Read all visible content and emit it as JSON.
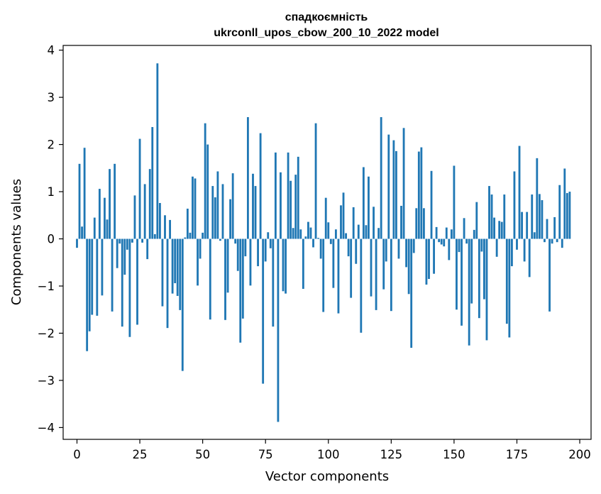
{
  "chart_data": {
    "type": "bar",
    "title_line1": "спадкоємність",
    "title_line2": "ukrconll_upos_cbow_200_10_2022 model",
    "xlabel": "Vector components",
    "ylabel": "Components values",
    "xlim": [
      -5.5,
      204.5
    ],
    "ylim": [
      -4.25,
      4.1
    ],
    "xticks": [
      0,
      25,
      50,
      75,
      100,
      125,
      150,
      175,
      200
    ],
    "yticks": [
      -4,
      -3,
      -2,
      -1,
      0,
      1,
      2,
      3,
      4
    ],
    "bar_color": "#1f77b4",
    "values": [
      -0.19,
      1.59,
      0.26,
      1.93,
      -2.38,
      -1.96,
      -1.61,
      0.45,
      -1.63,
      1.06,
      -1.2,
      0.87,
      0.41,
      1.48,
      -1.54,
      1.59,
      -0.62,
      -0.1,
      -1.86,
      -0.76,
      -0.23,
      -2.08,
      -0.08,
      0.92,
      -1.82,
      2.12,
      -0.08,
      1.16,
      -0.43,
      1.48,
      2.37,
      0.1,
      3.72,
      0.76,
      -1.43,
      0.5,
      -1.89,
      0.4,
      -1.16,
      -0.94,
      -1.21,
      -1.51,
      -2.8,
      0.03,
      0.64,
      0.13,
      1.32,
      1.28,
      -0.99,
      -0.42,
      0.13,
      2.45,
      2.0,
      -1.71,
      1.12,
      0.88,
      1.43,
      -0.04,
      1.16,
      -1.72,
      -1.14,
      0.84,
      1.39,
      -0.1,
      -0.68,
      -2.2,
      -1.69,
      -0.37,
      2.58,
      -0.99,
      1.38,
      1.12,
      -0.58,
      2.24,
      -3.07,
      -0.48,
      0.14,
      -0.2,
      -1.86,
      1.83,
      -3.88,
      1.41,
      -1.11,
      -1.16,
      1.83,
      1.23,
      0.23,
      1.36,
      1.74,
      0.2,
      -1.06,
      0.05,
      0.36,
      0.24,
      -0.18,
      2.45,
      0.02,
      -0.42,
      -1.55,
      0.87,
      0.35,
      -0.11,
      -1.04,
      0.2,
      -1.58,
      0.71,
      0.98,
      0.12,
      -0.37,
      -1.25,
      0.67,
      -0.53,
      0.3,
      -1.99,
      1.52,
      0.29,
      1.32,
      -1.22,
      0.68,
      -1.51,
      0.23,
      2.58,
      -1.07,
      -0.48,
      2.21,
      -1.53,
      2.09,
      1.86,
      -0.42,
      0.7,
      2.35,
      -0.6,
      -1.17,
      -2.31,
      -0.3,
      0.65,
      1.85,
      1.94,
      0.65,
      -0.97,
      -0.85,
      1.44,
      -0.74,
      0.25,
      -0.07,
      -0.12,
      -0.16,
      0.24,
      -0.45,
      0.2,
      1.55,
      -1.5,
      -0.28,
      -1.84,
      0.44,
      -0.1,
      -2.26,
      -1.37,
      0.19,
      0.78,
      -1.68,
      -0.27,
      -1.28,
      -2.15,
      1.12,
      0.94,
      0.45,
      -0.38,
      0.38,
      0.36,
      0.94,
      -1.8,
      -2.09,
      -0.58,
      1.43,
      -0.23,
      1.97,
      0.57,
      -0.48,
      0.57,
      -0.81,
      0.94,
      0.14,
      1.71,
      0.95,
      0.82,
      -0.07,
      0.42,
      -1.54,
      -0.1,
      0.46,
      -0.07,
      1.14,
      -0.19,
      1.49,
      0.97,
      1.0
    ]
  }
}
